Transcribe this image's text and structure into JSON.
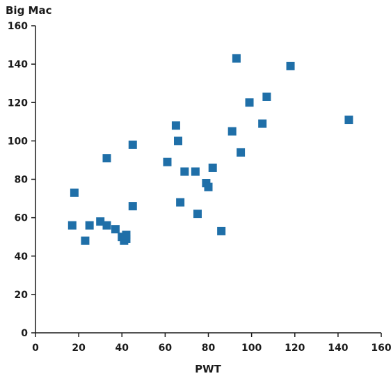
{
  "chart_data": {
    "type": "scatter",
    "title": "",
    "xlabel": "PWT",
    "ylabel": "Big Mac",
    "xlim": [
      0,
      160
    ],
    "ylim": [
      0,
      160
    ],
    "xticks": [
      0,
      20,
      40,
      60,
      80,
      100,
      120,
      140,
      160
    ],
    "yticks": [
      0,
      20,
      40,
      60,
      80,
      100,
      120,
      140,
      160
    ],
    "grid": false,
    "marker": "square",
    "color": "#1f6fa8",
    "x": [
      17,
      18,
      23,
      25,
      30,
      33,
      33,
      37,
      40,
      41,
      42,
      42,
      45,
      45,
      61,
      65,
      66,
      67,
      69,
      74,
      75,
      79,
      80,
      82,
      86,
      91,
      93,
      95,
      99,
      105,
      107,
      118,
      145
    ],
    "y": [
      56,
      73,
      48,
      56,
      58,
      56,
      91,
      54,
      50,
      48,
      49,
      51,
      98,
      66,
      89,
      108,
      100,
      68,
      84,
      84,
      62,
      78,
      76,
      86,
      53,
      105,
      143,
      94,
      120,
      109,
      123,
      139,
      111
    ]
  }
}
